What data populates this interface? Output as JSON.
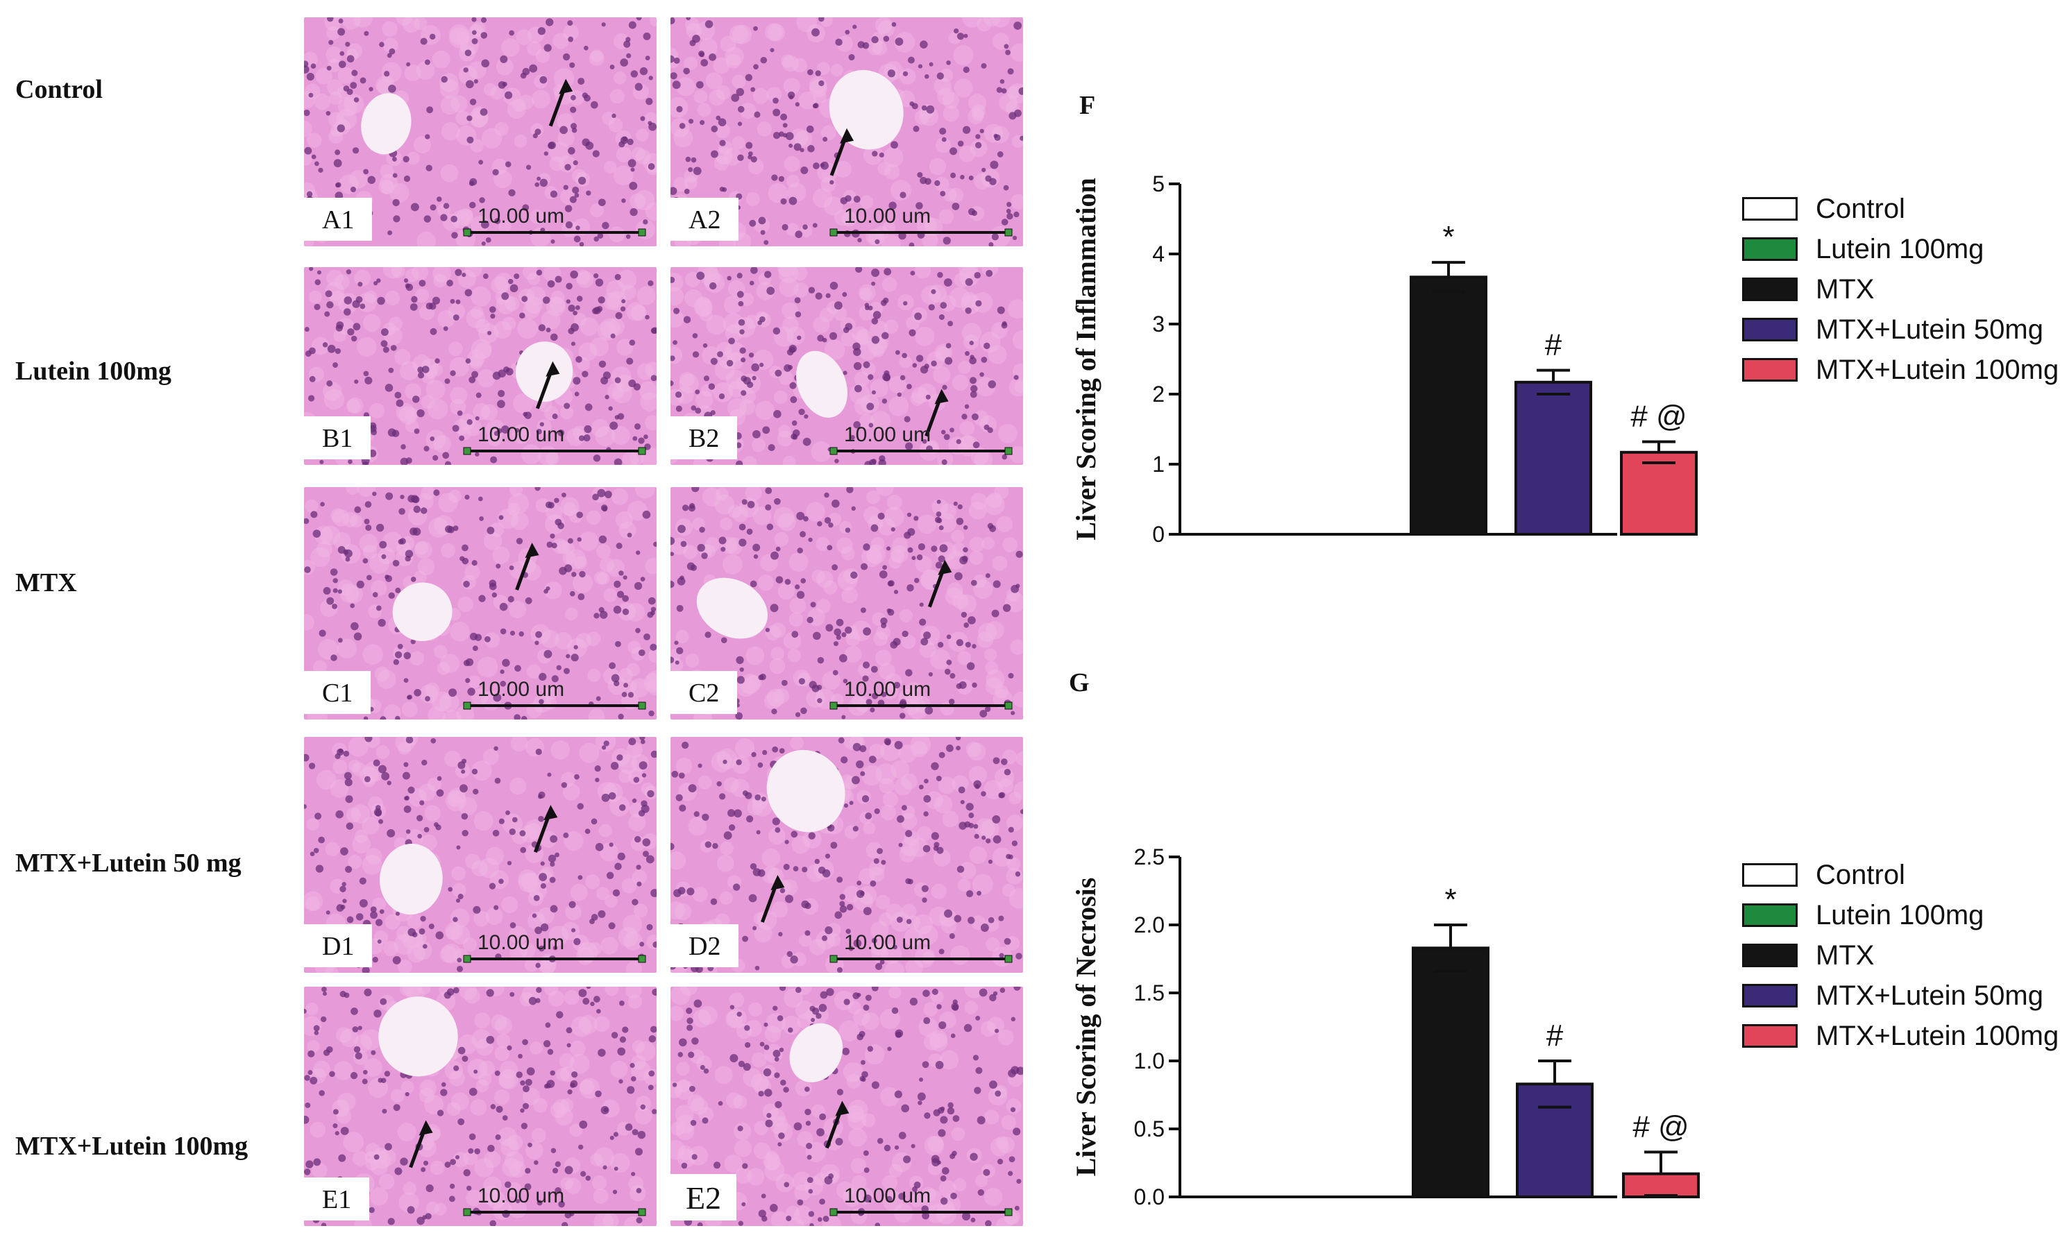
{
  "histology": {
    "rows": [
      {
        "label": "Control",
        "panels": [
          "A1",
          "A2"
        ]
      },
      {
        "label": "Lutein 100mg",
        "panels": [
          "B1",
          "B2"
        ]
      },
      {
        "label": "MTX",
        "panels": [
          "C1",
          "C2"
        ]
      },
      {
        "label": "MTX+Lutein 50 mg",
        "panels": [
          "D1",
          "D2"
        ]
      },
      {
        "label": "MTX+Lutein 100mg",
        "panels": [
          "E1",
          "E2"
        ]
      }
    ],
    "scale_bar_label": "10.00 um",
    "tissue_color": "#e69ad8",
    "nucleus_color": "#6b2e7a"
  },
  "legend_items": [
    {
      "label": "Control",
      "color": "#ffffff"
    },
    {
      "label": "Lutein 100mg",
      "color": "#1e8a3e"
    },
    {
      "label": "MTX",
      "color": "#141414"
    },
    {
      "label": "MTX+Lutein 50mg",
      "color": "#3b2a78"
    },
    {
      "label": "MTX+Lutein 100mg",
      "color": "#e0455a"
    }
  ],
  "chart_data": [
    {
      "panel_letter": "F",
      "type": "bar",
      "categories": [
        "Control",
        "Lutein 100mg",
        "MTX",
        "MTX+Lutein 50mg",
        "MTX+Lutein 100mg"
      ],
      "values": [
        0,
        0,
        3.67,
        2.17,
        1.17
      ],
      "errors": [
        0,
        0,
        0.21,
        0.17,
        0.15
      ],
      "annotations": [
        "",
        "",
        "*",
        "#",
        "# @"
      ],
      "ylabel": "Liver Scoring of Inflammation",
      "ylim": [
        0,
        5
      ],
      "yticks": [
        0,
        1,
        2,
        3,
        4,
        5
      ],
      "ytick_labels": [
        "0",
        "1",
        "2",
        "3",
        "4",
        "5"
      ],
      "legend_position": "right"
    },
    {
      "panel_letter": "G",
      "type": "bar",
      "categories": [
        "Control",
        "Lutein 100mg",
        "MTX",
        "MTX+Lutein 50mg",
        "MTX+Lutein 100mg"
      ],
      "values": [
        0,
        0,
        1.83,
        0.83,
        0.17
      ],
      "errors": [
        0,
        0,
        0.17,
        0.17,
        0.16
      ],
      "annotations": [
        "",
        "",
        "*",
        "#",
        "# @"
      ],
      "ylabel": "Liver Scoring of Necrosis",
      "ylim": [
        0,
        2.5
      ],
      "yticks": [
        0,
        0.5,
        1,
        1.5,
        2,
        2.5
      ],
      "ytick_labels": [
        "0.0",
        "0.5",
        "1.0",
        "1.5",
        "2.0",
        "2.5"
      ],
      "legend_position": "right"
    }
  ]
}
